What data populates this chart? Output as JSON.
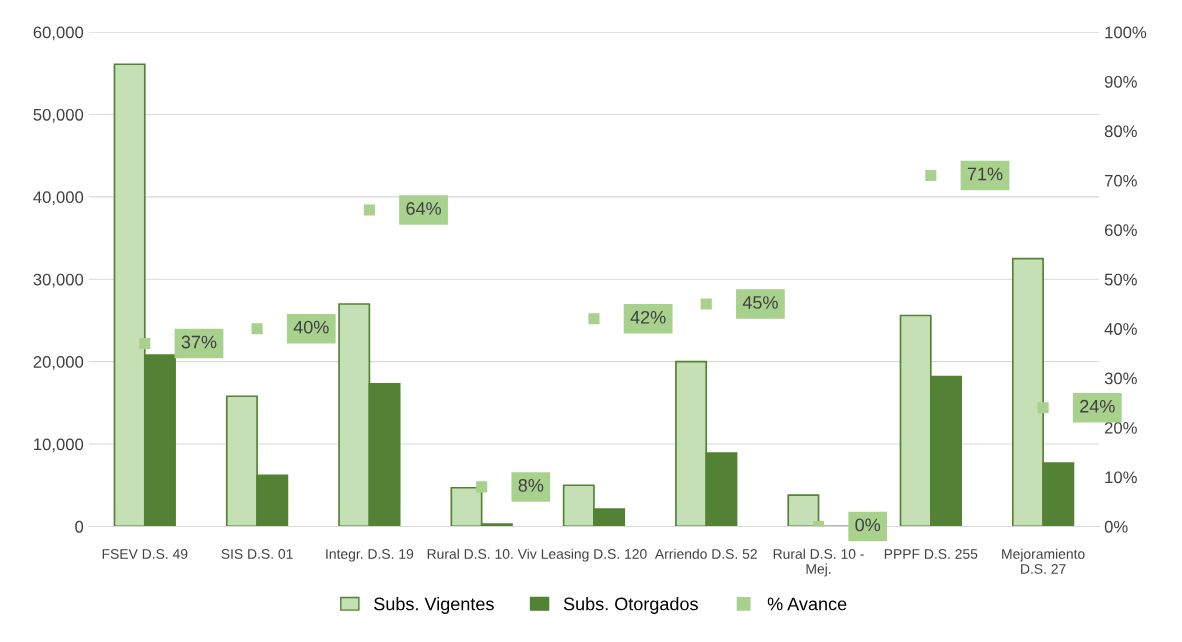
{
  "chart_data": {
    "type": "bar",
    "categories": [
      "FSEV D.S. 49",
      "SIS D.S. 01",
      "Integr. D.S. 19",
      "Rural D.S. 10. Viv",
      "Leasing D.S. 120",
      "Arriendo D.S. 52",
      "Rural D.S. 10 -\nMej.",
      "PPPF D.S. 255",
      "Mejoramiento\nD.S. 27"
    ],
    "series": [
      {
        "name": "Subs. Vigentes",
        "color": "#c5e0b4",
        "values": [
          56100,
          15800,
          27000,
          4700,
          5000,
          20000,
          3800,
          25600,
          32500
        ]
      },
      {
        "name": "Subs. Otorgados",
        "color": "#548235",
        "values": [
          20800,
          6200,
          17300,
          300,
          2100,
          8900,
          0,
          18200,
          7700
        ]
      },
      {
        "name": "% Avance",
        "type": "scatter",
        "axis": "y2",
        "marker": "square",
        "color": "#a9d18e",
        "value_labels": [
          "37%",
          "40%",
          "64%",
          "8%",
          "42%",
          "45%",
          "0%",
          "71%",
          "24%"
        ],
        "values": [
          37,
          40,
          64,
          8,
          42,
          45,
          0,
          71,
          24
        ]
      }
    ],
    "ylim": [
      0,
      60000
    ],
    "yticks": [
      {
        "value": 0,
        "label": "0"
      },
      {
        "value": 10000,
        "label": "10,000"
      },
      {
        "value": 20000,
        "label": "20,000"
      },
      {
        "value": 30000,
        "label": "30,000"
      },
      {
        "value": 40000,
        "label": "40,000"
      },
      {
        "value": 50000,
        "label": "50,000"
      },
      {
        "value": 60000,
        "label": "60,000"
      }
    ],
    "y2lim": [
      0,
      100
    ],
    "y2ticks": [
      {
        "value": 0,
        "label": "0%"
      },
      {
        "value": 10,
        "label": "10%"
      },
      {
        "value": 20,
        "label": "20%"
      },
      {
        "value": 30,
        "label": "30%"
      },
      {
        "value": 40,
        "label": "40%"
      },
      {
        "value": 50,
        "label": "50%"
      },
      {
        "value": 60,
        "label": "60%"
      },
      {
        "value": 70,
        "label": "70%"
      },
      {
        "value": 80,
        "label": "80%"
      },
      {
        "value": 90,
        "label": "90%"
      },
      {
        "value": 100,
        "label": "100%"
      }
    ],
    "grid": "y",
    "legend": "bottom"
  }
}
